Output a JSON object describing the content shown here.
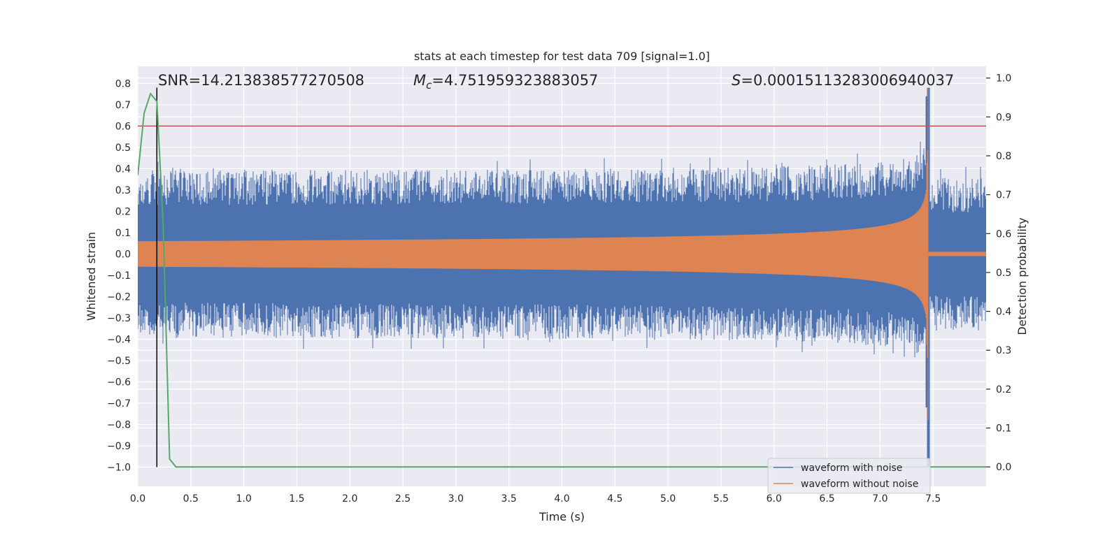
{
  "chart_data": {
    "type": "line",
    "title": "stats at each timestep for test data 709 [signal=1.0]",
    "xlabel": "Time (s)",
    "ylabel": "Whitened strain",
    "y2label": "Detection probability",
    "xlim": [
      0.0,
      8.0
    ],
    "ylim": [
      -1.09,
      0.88
    ],
    "y2lim": [
      -0.05,
      1.03
    ],
    "xticks": [
      "0.0",
      "0.5",
      "1.0",
      "1.5",
      "2.0",
      "2.5",
      "3.0",
      "3.5",
      "4.0",
      "4.5",
      "5.0",
      "5.5",
      "6.0",
      "6.5",
      "7.0",
      "7.5"
    ],
    "yticks": [
      "0.8",
      "0.7",
      "0.6",
      "0.5",
      "0.4",
      "0.3",
      "0.2",
      "0.1",
      "0.0",
      "−0.1",
      "−0.2",
      "−0.3",
      "−0.4",
      "−0.5",
      "−0.6",
      "−0.7",
      "−0.8",
      "−0.9",
      "−1.0"
    ],
    "y2ticks": [
      "1.0",
      "0.9",
      "0.8",
      "0.7",
      "0.6",
      "0.5",
      "0.4",
      "0.3",
      "0.2",
      "0.1",
      "0.0"
    ],
    "grid": true,
    "legend_position": "lower-right",
    "annotations": {
      "snr_label": "SNR=14.213838577270508",
      "mc_symbol": "M",
      "mc_subscript": "c",
      "mc_value": "=4.751959323883057",
      "s_symbol": "S",
      "s_value": "=0.00015113283006940037"
    },
    "series": [
      {
        "name": "waveform with noise",
        "color": "#4c72b0",
        "description_points": {
          "noise_amplitude": 0.3,
          "merger_time": 7.46,
          "peak_max": 0.78,
          "peak_min": -1.0
        }
      },
      {
        "name": "waveform without noise",
        "color": "#dd8452",
        "description_points": {
          "start_amplitude": 0.06,
          "merger_time": 7.46,
          "peak_max": 0.75,
          "peak_min": -0.82
        }
      }
    ],
    "detection_probability": {
      "color": "#55a868",
      "x": [
        0.0,
        0.06,
        0.12,
        0.18,
        0.24,
        0.3,
        0.36,
        8.0
      ],
      "y": [
        0.75,
        0.91,
        0.96,
        0.94,
        0.62,
        0.02,
        0.0,
        0.0
      ]
    },
    "threshold_line": {
      "color": "#c44e52",
      "y": 0.6
    },
    "vertical_marker": {
      "color": "#000000",
      "x": 0.18,
      "ymin": -1.0,
      "ymax": 0.78
    }
  },
  "colors": {
    "plot_bg": "#eaeaf2",
    "grid": "#ffffff",
    "text": "#262626"
  }
}
